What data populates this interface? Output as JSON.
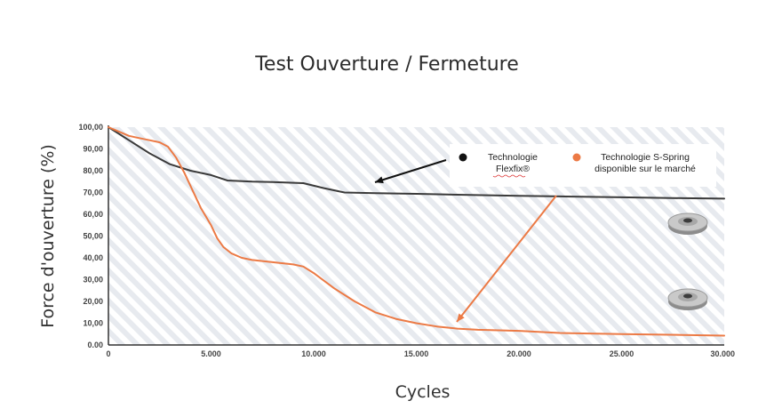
{
  "chart_data": {
    "type": "line",
    "title": "Test Ouverture / Fermeture",
    "xlabel": "Cycles",
    "ylabel": "Force d'ouverture (%)",
    "xlim": [
      0,
      30000
    ],
    "ylim": [
      0,
      100
    ],
    "x_ticks": [
      0,
      5000,
      10000,
      15000,
      20000,
      25000,
      30000
    ],
    "x_tick_labels": [
      "0",
      "5.000",
      "10.000",
      "15.000",
      "20.000",
      "25.000",
      "30.000"
    ],
    "y_ticks": [
      0,
      10,
      20,
      30,
      40,
      50,
      60,
      70,
      80,
      90,
      100
    ],
    "y_tick_labels": [
      "0.00",
      "10,00",
      "20,00",
      "30,00",
      "40,00",
      "50,00",
      "60,00",
      "70,00",
      "80,00",
      "90,00",
      "100,00"
    ],
    "series": [
      {
        "name": "Technologie Flexfix®",
        "color": "#3a3a3a",
        "x": [
          0,
          1000,
          2000,
          3000,
          4000,
          5000,
          5800,
          7000,
          8000,
          9500,
          10500,
          11500,
          13000,
          15000,
          17000,
          20000,
          22000,
          25000,
          28000,
          30000
        ],
        "y": [
          100,
          94,
          88,
          83,
          80,
          78,
          75.5,
          75,
          74.8,
          74.3,
          72,
          70,
          69.7,
          69.4,
          69,
          68.5,
          68.2,
          67.8,
          67.4,
          67.2
        ]
      },
      {
        "name": "Technologie S-Spring disponible sur le marché",
        "color": "#ec7a45",
        "x": [
          0,
          500,
          1000,
          1500,
          2000,
          2500,
          2900,
          3300,
          3700,
          4100,
          4500,
          5000,
          5300,
          5600,
          6000,
          6500,
          7000,
          8000,
          9000,
          9500,
          10000,
          11000,
          12000,
          13000,
          14000,
          15000,
          16000,
          17000,
          18000,
          20000,
          22000,
          25000,
          28000,
          30000
        ],
        "y": [
          100,
          98,
          96,
          95,
          94,
          93,
          91,
          86,
          79,
          71,
          63,
          55,
          49,
          45,
          42,
          40,
          39,
          38,
          37,
          36,
          33,
          26,
          20,
          15,
          12,
          10,
          8.5,
          7.5,
          7,
          6.5,
          5.5,
          5,
          4.6,
          4.3
        ]
      }
    ],
    "legend": {
      "placement": "top-right",
      "items": [
        {
          "line1": "Technologie",
          "line2": "Flexfix®",
          "color": "#111111"
        },
        {
          "line1": "Technologie S-Spring",
          "line2": "disponible sur le marché",
          "color": "#ec7a45"
        }
      ]
    },
    "annotations": [
      {
        "type": "arrow",
        "color": "#111111",
        "target_series": "Technologie Flexfix®"
      },
      {
        "type": "arrow",
        "color": "#ec7a45",
        "target_series": "Technologie S-Spring disponible sur le marché"
      }
    ],
    "grid": false,
    "background": "diagonal-hatch"
  }
}
